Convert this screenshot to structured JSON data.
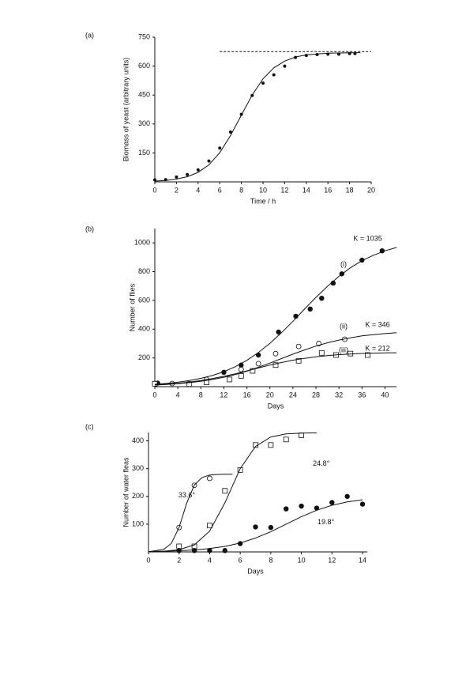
{
  "chart_data": [
    {
      "type": "scatter",
      "label": "(a)",
      "x_label": "Time / h",
      "y_label": "Biomass of yeast (arbitrary units)",
      "xlim": [
        0,
        20
      ],
      "ylim": [
        0,
        750
      ],
      "xticks": [
        0,
        2,
        4,
        6,
        8,
        10,
        12,
        14,
        16,
        18,
        20
      ],
      "yticks": [
        150,
        300,
        450,
        600,
        750
      ],
      "series": [
        {
          "marker": "small-filled-circle",
          "x": [
            0,
            1,
            2,
            3,
            4,
            5,
            6,
            7,
            8,
            9,
            10,
            11,
            12,
            13,
            14,
            15,
            16,
            17,
            18,
            18.5
          ],
          "values": [
            10,
            12,
            25,
            38,
            62,
            108,
            175,
            258,
            350,
            448,
            512,
            555,
            600,
            645,
            655,
            660,
            662,
            662,
            665,
            665
          ]
        },
        {
          "marker": "line",
          "x": [
            0,
            1,
            2,
            3,
            4,
            5,
            6,
            7,
            8,
            9,
            10,
            11,
            12,
            13,
            14,
            15,
            16,
            17,
            18,
            19
          ],
          "values": [
            3.9,
            7.5,
            14.2,
            26.6,
            49.3,
            88.3,
            151,
            240,
            346,
            450,
            534,
            591,
            626,
            647,
            658,
            663,
            667,
            668,
            669,
            669.5
          ]
        },
        {
          "marker": "dashed-line",
          "x": [
            6,
            20
          ],
          "values": [
            675,
            675
          ]
        }
      ],
      "annotations": []
    },
    {
      "type": "scatter",
      "label": "(b)",
      "x_label": "Days",
      "y_label": "Number of flies",
      "xlim": [
        0,
        42
      ],
      "ylim": [
        0,
        1100
      ],
      "xticks": [
        0,
        4,
        8,
        12,
        16,
        20,
        24,
        28,
        32,
        36,
        40
      ],
      "yticks": [
        200,
        400,
        600,
        800,
        1000
      ],
      "series": [
        {
          "marker": "filled-circle",
          "x": [
            0.5,
            9,
            12,
            15,
            18,
            21.5,
            24.5,
            27,
            29,
            31,
            32.5,
            36,
            39.5
          ],
          "values": [
            25,
            40,
            100,
            150,
            220,
            380,
            490,
            540,
            615,
            720,
            785,
            880,
            945
          ]
        },
        {
          "marker": "open-circle",
          "x": [
            0,
            3,
            6,
            9,
            15,
            18,
            21,
            25,
            28.5,
            33
          ],
          "values": [
            22,
            22,
            20,
            50,
            120,
            160,
            230,
            280,
            300,
            330
          ]
        },
        {
          "marker": "open-square",
          "x": [
            0,
            6,
            9,
            13,
            15,
            17,
            21,
            25,
            29,
            31.5,
            34,
            37
          ],
          "values": [
            20,
            18,
            30,
            50,
            75,
            110,
            150,
            180,
            235,
            220,
            230,
            220
          ]
        },
        {
          "marker": "line",
          "x": [
            0,
            2,
            4,
            6,
            8,
            10,
            12,
            14,
            16,
            18,
            20,
            22,
            24,
            26,
            28,
            30,
            32,
            34,
            36,
            38,
            40,
            42
          ],
          "values": [
            16.4,
            22.5,
            30.8,
            42.2,
            57.5,
            77.8,
            104,
            139,
            183,
            237,
            301,
            375,
            455,
            539,
            621,
            698,
            767,
            827,
            876,
            914,
            945,
            968
          ]
        },
        {
          "marker": "line",
          "x": [
            0,
            2,
            4,
            6,
            8,
            10,
            12,
            14,
            16,
            18,
            20,
            22,
            24,
            26,
            28,
            30,
            32,
            34,
            36,
            38,
            40,
            42
          ],
          "values": [
            11.2,
            15.3,
            20.7,
            28,
            37.5,
            49.9,
            65.5,
            84.8,
            108,
            135,
            164,
            195,
            226,
            255,
            282,
            305,
            324,
            340,
            353,
            362,
            369,
            375
          ]
        },
        {
          "marker": "line",
          "x": [
            0,
            2,
            4,
            6,
            8,
            10,
            12,
            14,
            16,
            18,
            20,
            22,
            24,
            26,
            28,
            30,
            32,
            34,
            36,
            38,
            40,
            42
          ],
          "values": [
            12.6,
            17.4,
            23.7,
            32,
            42.7,
            56,
            71.9,
            89.9,
            110,
            130,
            150,
            168,
            184,
            197,
            208,
            216,
            223,
            227,
            231,
            233,
            235,
            236
          ]
        }
      ],
      "annotations": [
        {
          "text": "(i)",
          "x": 32.8,
          "y": 850
        },
        {
          "text": "K = 1035",
          "x": 37,
          "y": 1028
        },
        {
          "text": "(ii)",
          "x": 32.8,
          "y": 418
        },
        {
          "text": "K = 346",
          "x": 38.7,
          "y": 429
        },
        {
          "text": "(iii)",
          "x": 32.8,
          "y": 253
        },
        {
          "text": "K = 212",
          "x": 38.7,
          "y": 264
        }
      ]
    },
    {
      "type": "scatter",
      "label": "(c)",
      "x_label": "Days",
      "y_label": "Number of water fleas",
      "xlim": [
        0,
        14
      ],
      "ylim": [
        0,
        430
      ],
      "xticks": [
        0,
        2,
        4,
        6,
        8,
        10,
        12,
        14
      ],
      "yticks": [
        100,
        200,
        300,
        400
      ],
      "series": [
        {
          "marker": "open-circle",
          "x": [
            2,
            3,
            4
          ],
          "values": [
            88,
            240,
            265
          ]
        },
        {
          "marker": "open-square",
          "x": [
            2,
            3,
            4,
            5,
            6,
            7,
            8,
            9,
            10
          ],
          "values": [
            20,
            20,
            95,
            220,
            295,
            385,
            385,
            405,
            420
          ]
        },
        {
          "marker": "filled-circle",
          "x": [
            2,
            3,
            4,
            5,
            6,
            7,
            8,
            9,
            10,
            11,
            12,
            13,
            14
          ],
          "values": [
            5,
            5,
            5,
            5,
            30,
            90,
            88,
            155,
            165,
            158,
            178,
            200,
            172
          ]
        },
        {
          "marker": "line",
          "x": [
            0,
            1,
            1.5,
            2,
            2.5,
            3,
            3.5,
            4,
            4.5,
            5,
            5.5
          ],
          "values": [
            0.7,
            9.2,
            31,
            88,
            176,
            241,
            268,
            277,
            279,
            280,
            280
          ]
        },
        {
          "marker": "line",
          "x": [
            0,
            1,
            2,
            3,
            4,
            5,
            6,
            7,
            8,
            9,
            10,
            11
          ],
          "values": [
            0.74,
            2.5,
            8.0,
            25.6,
            75,
            177,
            300,
            380,
            414,
            425,
            428,
            429
          ]
        },
        {
          "marker": "line",
          "x": [
            0,
            1,
            2,
            3,
            4,
            5,
            6,
            7,
            8,
            9,
            10,
            11,
            12,
            13,
            14
          ],
          "values": [
            1.4,
            2.4,
            4.2,
            7.1,
            12,
            20,
            32,
            50,
            73,
            100,
            127,
            150,
            168,
            180,
            188
          ]
        }
      ],
      "annotations": [
        {
          "text": "33.6°",
          "x": 2.5,
          "y": 203
        },
        {
          "text": "24.8°",
          "x": 11.3,
          "y": 317
        },
        {
          "text": "19.8°",
          "x": 11.6,
          "y": 106
        }
      ]
    }
  ]
}
